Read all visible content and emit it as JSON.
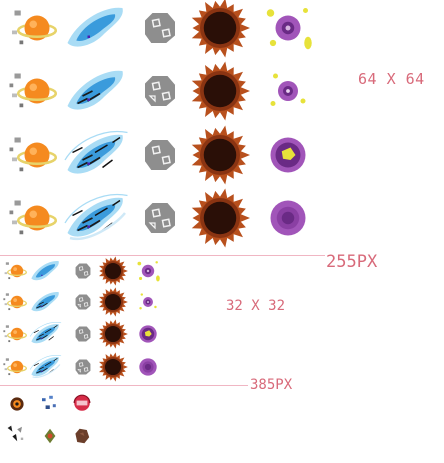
{
  "sheet": {
    "label_64": "64 X 64",
    "label_255": "255PX",
    "label_32": "32 X 32",
    "label_385": "385PX"
  },
  "palette": {
    "planet": "#f58a1f",
    "ring": "#e7d36a",
    "comet_outer": "#a9dcf5",
    "comet_inner": "#3a9bdc",
    "rock": "#8e8e8e",
    "hole_rim": "#b8501d",
    "hole_core": "#2a0f07",
    "portal": "#a155b9",
    "portal_core": "#6a2a85",
    "spark": "#e7e23a",
    "divider": "#f0b6c3",
    "label": "#d86a7a"
  },
  "sprite_kinds": [
    "planet",
    "comet",
    "asteroid",
    "black-hole",
    "portal"
  ]
}
